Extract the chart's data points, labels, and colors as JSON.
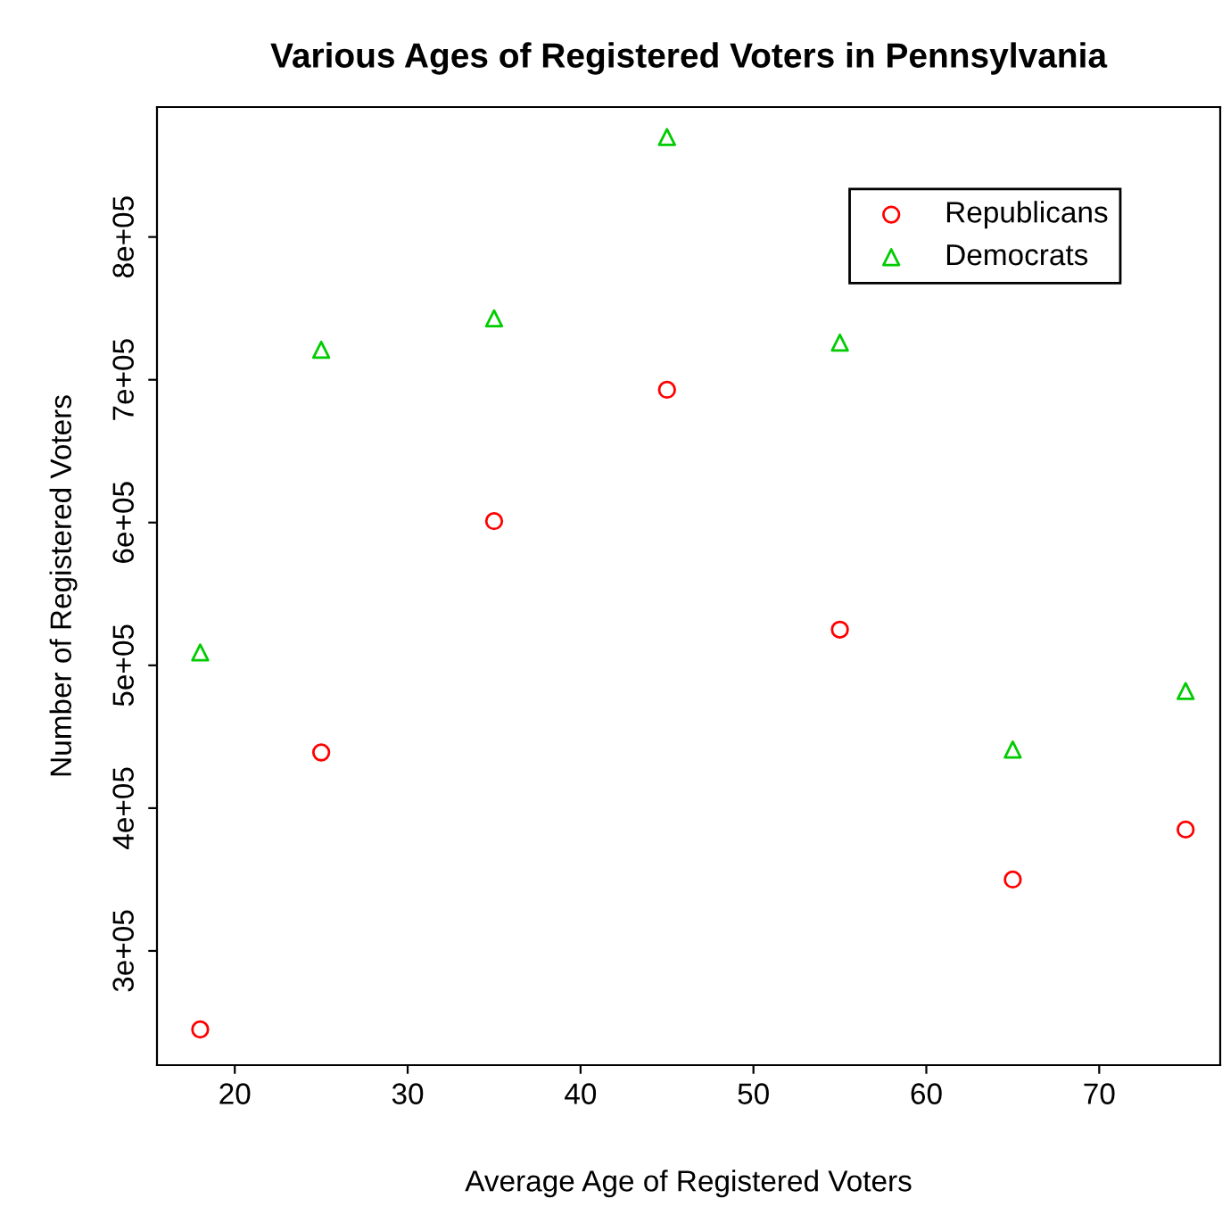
{
  "chart_data": {
    "type": "scatter",
    "title": "Various Ages of Registered Voters in Pennsylvania",
    "xlabel": "Average Age of Registered Voters",
    "ylabel": "Number of Registered Voters",
    "x": [
      18,
      25,
      35,
      45,
      55,
      65,
      75
    ],
    "series": [
      {
        "name": "Republicans",
        "color": "#ff0000",
        "marker": "circle",
        "values": [
          245000,
          439000,
          601000,
          693000,
          525000,
          350000,
          385000
        ]
      },
      {
        "name": "Democrats",
        "color": "#00cc00",
        "marker": "triangle",
        "values": [
          509000,
          721000,
          743000,
          870000,
          726000,
          441000,
          482000
        ]
      }
    ],
    "xlim": [
      15.5,
      77
    ],
    "ylim": [
      220000,
      891000
    ],
    "xticks": [
      20,
      30,
      40,
      50,
      60,
      70
    ],
    "yticks": [
      {
        "value": 300000,
        "label": "3e+05"
      },
      {
        "value": 400000,
        "label": "4e+05"
      },
      {
        "value": 500000,
        "label": "5e+05"
      },
      {
        "value": 600000,
        "label": "6e+05"
      },
      {
        "value": 700000,
        "label": "7e+05"
      },
      {
        "value": 800000,
        "label": "8e+05"
      }
    ],
    "grid": false,
    "legend": "top right"
  }
}
